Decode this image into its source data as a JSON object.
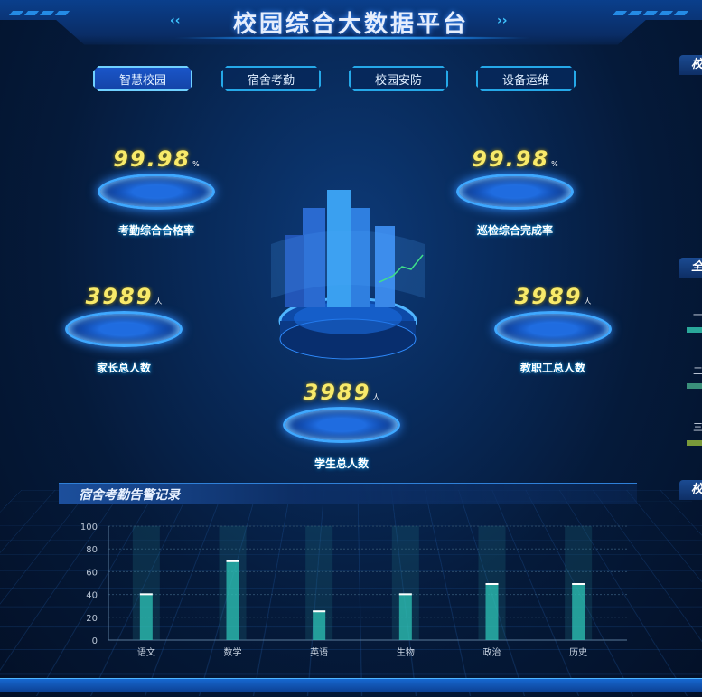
{
  "header": {
    "title": "校园综合大数据平台"
  },
  "tabs": [
    {
      "label": "智慧校园",
      "active": true
    },
    {
      "label": "宿舍考勤"
    },
    {
      "label": "校园安防"
    },
    {
      "label": "设备运维"
    }
  ],
  "stats": [
    {
      "value": "99.98",
      "unit": "%",
      "label": "考勤综合合格率"
    },
    {
      "value": "99.98",
      "unit": "%",
      "label": "巡检综合完成率"
    },
    {
      "value": "3989",
      "unit": "人",
      "label": "家长总人数"
    },
    {
      "value": "3989",
      "unit": "人",
      "label": "教职工总人数"
    },
    {
      "value": "3989",
      "unit": "人",
      "label": "学生总人数"
    }
  ],
  "right_panels": {
    "titles": [
      "校",
      "全",
      "校"
    ],
    "rank_items": [
      {
        "label": "一",
        "color": "#2aa89a"
      },
      {
        "label": "二",
        "color": "#3a8f7a"
      },
      {
        "label": "三",
        "color": "#7a9a3a"
      }
    ]
  },
  "chart_panel": {
    "title": "宿舍考勤告警记录"
  },
  "chart_data": {
    "type": "bar",
    "categories": [
      "语文",
      "数学",
      "英语",
      "生物",
      "政治",
      "历史"
    ],
    "values": [
      41,
      70,
      26,
      41,
      50,
      50
    ],
    "ylim": [
      0,
      100
    ],
    "yticks": [
      "0",
      "20",
      "40",
      "60",
      "80",
      "100"
    ],
    "grid": true,
    "bar_color": "#2ec4b6"
  }
}
